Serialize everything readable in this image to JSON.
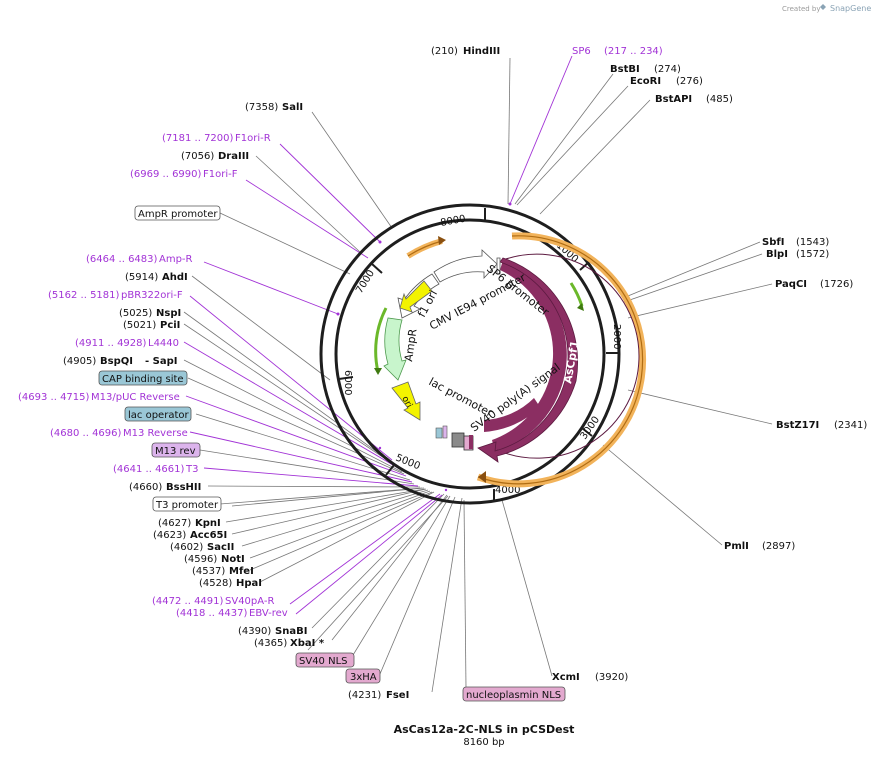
{
  "header": {
    "credit_prefix": "Created by",
    "brand": "SnapGene"
  },
  "plasmid": {
    "name": "AsCas12a-2C-NLS in pCSDest",
    "length_label": "8160 bp",
    "length_bp": 8160
  },
  "ticks": [
    "1000",
    "2000",
    "3000",
    "4000",
    "5000",
    "6000",
    "7000",
    "8000"
  ],
  "features": [
    {
      "key": "ascpf1",
      "label": "AsCpf1",
      "start": 6,
      "end": 4080,
      "color": "#8b2e62",
      "dir": "cw"
    },
    {
      "key": "sp6_promoter",
      "label": "SP6 promoter",
      "color": "#ffffff",
      "dir": "cw"
    },
    {
      "key": "sv40_polya",
      "label": "SV40 poly(A) signal",
      "color": "#8b8b8b",
      "dir": "cw"
    },
    {
      "key": "cmv_promoter",
      "label": "CMV IE94 promoter",
      "color": "#ffffff",
      "dir": "ccw"
    },
    {
      "key": "f1_ori",
      "label": "f1 ori",
      "color": "#f3f300",
      "dir": "ccw"
    },
    {
      "key": "ampr",
      "label": "AmpR",
      "color": "#c8f5cc",
      "dir": "ccw"
    },
    {
      "key": "ori",
      "label": "ori",
      "color": "#f3f300",
      "dir": "ccw"
    },
    {
      "key": "lac_promoter",
      "label": "lac promoter",
      "color": "#ffffff",
      "dir": "ccw"
    }
  ],
  "sites": [
    {
      "key": "hindiii",
      "name": "HindIII",
      "pos": "(210)"
    },
    {
      "key": "sp6",
      "name": "SP6",
      "pos": "(217 .. 234)",
      "primer": true
    },
    {
      "key": "bstbi",
      "name": "BstBI",
      "pos": "(274)"
    },
    {
      "key": "ecori",
      "name": "EcoRI",
      "pos": "(276)"
    },
    {
      "key": "bstapi",
      "name": "BstAPI",
      "pos": "(485)"
    },
    {
      "key": "sbfi",
      "name": "SbfI",
      "pos": "(1543)"
    },
    {
      "key": "blpi",
      "name": "BlpI",
      "pos": "(1572)"
    },
    {
      "key": "paqci",
      "name": "PaqCI",
      "pos": "(1726)"
    },
    {
      "key": "bstz17i",
      "name": "BstZ17I",
      "pos": "(2341)"
    },
    {
      "key": "pmli",
      "name": "PmlI",
      "pos": "(2897)"
    },
    {
      "key": "xcmi",
      "name": "XcmI",
      "pos": "(3920)"
    },
    {
      "key": "nucleoplasmin_nls",
      "name": "nucleoplasmin NLS",
      "box": true
    },
    {
      "key": "fsei",
      "name": "FseI",
      "pos": "(4231)"
    },
    {
      "key": "3xha",
      "name": "3xHA",
      "box": true
    },
    {
      "key": "sv40_nls",
      "name": "SV40 NLS",
      "box": true
    },
    {
      "key": "xbai",
      "name": "XbaI *",
      "pos": "(4365)"
    },
    {
      "key": "snabi",
      "name": "SnaBI",
      "pos": "(4390)"
    },
    {
      "key": "ebv_rev",
      "name": "EBV-rev",
      "pos": "(4418 .. 4437)",
      "primer": true
    },
    {
      "key": "sv40pa_r",
      "name": "SV40pA-R",
      "pos": "(4472 .. 4491)",
      "primer": true
    },
    {
      "key": "hpai",
      "name": "HpaI",
      "pos": "(4528)"
    },
    {
      "key": "mfei",
      "name": "MfeI",
      "pos": "(4537)"
    },
    {
      "key": "noti",
      "name": "NotI",
      "pos": "(4596)"
    },
    {
      "key": "sacii",
      "name": "SacII",
      "pos": "(4602)"
    },
    {
      "key": "acc65i",
      "name": "Acc65I",
      "pos": "(4623)"
    },
    {
      "key": "kpni",
      "name": "KpnI",
      "pos": "(4627)"
    },
    {
      "key": "t3_promoter",
      "name": "T3 promoter",
      "box": true
    },
    {
      "key": "bsshii",
      "name": "BssHII",
      "pos": "(4660)"
    },
    {
      "key": "t3",
      "name": "T3",
      "pos": "(4641 .. 4661)",
      "primer": true
    },
    {
      "key": "m13_rev",
      "name": "M13 rev",
      "box": true
    },
    {
      "key": "m13_reverse",
      "name": "M13 Reverse",
      "pos": "(4680 .. 4696)",
      "primer": true
    },
    {
      "key": "lac_operator",
      "name": "lac operator",
      "box": true
    },
    {
      "key": "m13_puc_reverse",
      "name": "M13/pUC Reverse",
      "pos": "(4693 .. 4715)",
      "primer": true
    },
    {
      "key": "cap_binding_site",
      "name": "CAP binding site",
      "box": true
    },
    {
      "key": "bspqi_sapi",
      "name": "BspQI",
      "name2": "- SapI",
      "pos": "(4905)"
    },
    {
      "key": "l4440",
      "name": "L4440",
      "pos": "(4911 .. 4928)",
      "primer": true
    },
    {
      "key": "pcii",
      "name": "PciI",
      "pos": "(5021)"
    },
    {
      "key": "nspi",
      "name": "NspI",
      "pos": "(5025)"
    },
    {
      "key": "pbr322ori_f",
      "name": "pBR322ori-F",
      "pos": "(5162 .. 5181)",
      "primer": true
    },
    {
      "key": "ahdi",
      "name": "AhdI",
      "pos": "(5914)"
    },
    {
      "key": "amp_r",
      "name": "Amp-R",
      "pos": "(6464 .. 6483)",
      "primer": true
    },
    {
      "key": "ampr_promoter",
      "name": "AmpR promoter",
      "box": true
    },
    {
      "key": "f1ori_f",
      "name": "F1ori-F",
      "pos": "(6969 .. 6990)",
      "primer": true
    },
    {
      "key": "draiii",
      "name": "DraIII",
      "pos": "(7056)"
    },
    {
      "key": "f1ori_r",
      "name": "F1ori-R",
      "pos": "(7181 .. 7200)",
      "primer": true
    },
    {
      "key": "sali",
      "name": "SalI",
      "pos": "(7358)"
    }
  ],
  "colors": {
    "primer": "#a233d6",
    "backbone": "#222222",
    "ascpf1": "#8b2e62",
    "orange_feature": "#f2b35a",
    "green_arrow": "#6bb82a",
    "ori_yellow": "#f3f300",
    "box_blue": "#9ac7d6",
    "box_pink": "#e3a9cf",
    "box_purple": "#dcb4ec",
    "box_gray": "#ffffff"
  }
}
